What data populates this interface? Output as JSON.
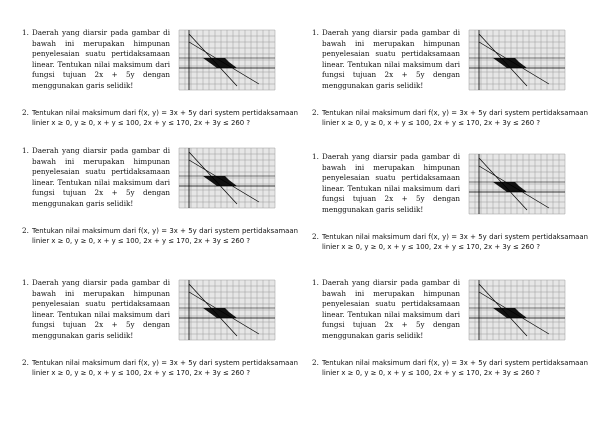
{
  "q1": {
    "number": "1.",
    "text": "Daerah yang diarsir pada gambar di bawah ini merupakan himpunan penyelesaian suatu pertidaksamaan linear. Tentukan nilai maksimum dari fungsi tujuan 2x + 5y dengan menggunakan garis selidik!"
  },
  "q2": {
    "number": "2.",
    "text": "Tentukan nilai maksimum dari f(x, y) = 3x + 5y dari system pertidaksamaan linier x ≥ 0, y ≥ 0, x + y ≤ 100, 2x + y ≤ 170, 2x + 3y ≤ 260 ?"
  },
  "graph": {
    "grid_color": "#9a9a9a",
    "bg_color": "#e6e6e6",
    "region_color": "#111111"
  }
}
